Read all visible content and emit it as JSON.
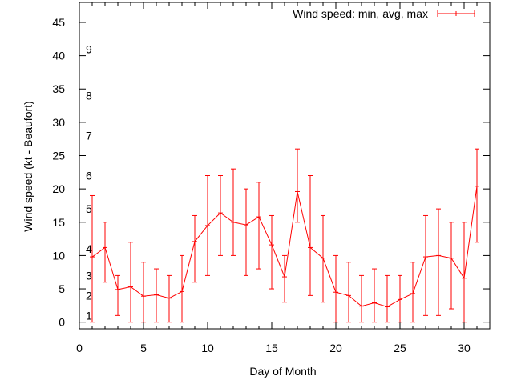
{
  "chart_data": {
    "type": "line",
    "xlabel": "Day of Month",
    "ylabel": "Wind speed (kt - Beaufort)",
    "xlim": [
      0,
      32
    ],
    "ylim": [
      -1,
      48
    ],
    "x_ticks": [
      0,
      5,
      10,
      15,
      20,
      25,
      30
    ],
    "y_ticks": [
      0,
      5,
      10,
      15,
      20,
      25,
      30,
      35,
      40,
      45
    ],
    "grid": false,
    "legend_position": "top-right",
    "beaufort_labels": [
      {
        "label": "1",
        "value": 1
      },
      {
        "label": "2",
        "value": 4
      },
      {
        "label": "3",
        "value": 7
      },
      {
        "label": "4",
        "value": 11
      },
      {
        "label": "5",
        "value": 17
      },
      {
        "label": "6",
        "value": 22
      },
      {
        "label": "7",
        "value": 28
      },
      {
        "label": "8",
        "value": 34
      },
      {
        "label": "9",
        "value": 41
      }
    ],
    "series": [
      {
        "name": "Wind speed: min, avg, max",
        "color": "#ff0000",
        "x": [
          1,
          2,
          3,
          4,
          5,
          6,
          7,
          8,
          9,
          10,
          11,
          12,
          13,
          14,
          15,
          16,
          17,
          18,
          19,
          20,
          21,
          22,
          23,
          24,
          25,
          26,
          27,
          28,
          29,
          30,
          31
        ],
        "avg": [
          9.8,
          11.2,
          4.9,
          5.3,
          3.9,
          4.1,
          3.6,
          4.6,
          12.1,
          14.5,
          16.4,
          15.0,
          14.6,
          15.8,
          11.6,
          6.8,
          19.6,
          11.2,
          9.6,
          4.5,
          4.0,
          2.4,
          2.9,
          2.3,
          3.4,
          4.3,
          9.8,
          10.0,
          9.6,
          6.6,
          20.4
        ],
        "min": [
          0,
          6,
          1,
          0,
          0,
          0,
          0,
          0,
          6,
          7,
          10,
          10,
          7,
          8,
          5,
          3,
          15,
          4,
          3,
          0,
          0,
          0,
          0,
          0,
          0,
          0,
          1,
          1,
          2,
          0,
          12
        ],
        "max": [
          19,
          15,
          7,
          12,
          9,
          8,
          7,
          10,
          16,
          22,
          22,
          23,
          20,
          21,
          16,
          10,
          26,
          22,
          16,
          10,
          9,
          7,
          8,
          7,
          7,
          9,
          16,
          17,
          15,
          15,
          26
        ]
      }
    ]
  }
}
